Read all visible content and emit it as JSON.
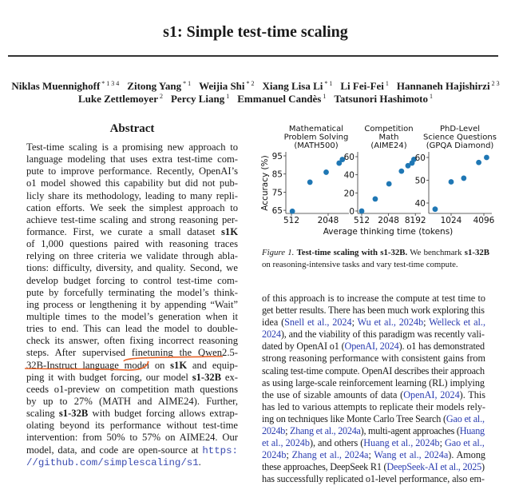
{
  "title": "s1: Simple test-time scaling",
  "authors_line1": [
    {
      "name": "Niklas Muennighoff",
      "sup": "* 1 3 4"
    },
    {
      "name": "Zitong Yang",
      "sup": "* 1"
    },
    {
      "name": "Weijia Shi",
      "sup": "* 2"
    },
    {
      "name": "Xiang Lisa Li",
      "sup": "* 1"
    },
    {
      "name": "Li Fei-Fei",
      "sup": "1"
    },
    {
      "name": "Hannaneh Hajishirzi",
      "sup": "2 3"
    }
  ],
  "authors_line2": [
    {
      "name": "Luke Zettlemoyer",
      "sup": "2"
    },
    {
      "name": "Percy Liang",
      "sup": "1"
    },
    {
      "name": "Emmanuel Candès",
      "sup": "1"
    },
    {
      "name": "Tatsunori Hashimoto",
      "sup": "1"
    }
  ],
  "abstract": {
    "heading": "Abstract",
    "lines": [
      [
        "Test-time scaling is a promising new approach to"
      ],
      [
        "language modeling that uses extra test-time com-"
      ],
      [
        "pute to improve performance. Recently, OpenAI’s"
      ],
      [
        "o1 model showed this capability but did not pub-"
      ],
      [
        "licly share its methodology, leading to many repli-"
      ],
      [
        "cation efforts. We seek the simplest approach to"
      ],
      [
        "achieve test-time scaling and strong reasoning per-"
      ],
      [
        "formance. First, we curate a small dataset ",
        {
          "t": "s1K",
          "s": "b"
        }
      ],
      [
        "of 1,000 questions paired with reasoning traces"
      ],
      [
        "relying on three criteria we validate through abla-"
      ],
      [
        "tions: difficulty, diversity, and quality. Second, we"
      ],
      [
        "develop budget forcing to control test-time com-"
      ],
      [
        "pute by forcefully terminating the model’s think-"
      ],
      [
        "ing process or lengthening it by appending “Wait”"
      ],
      [
        "multiple times to the model’s generation when it"
      ],
      [
        "tries to end. This can lead the model to double-"
      ],
      [
        "check its answer, often fixing incorrect reasoning"
      ],
      [
        "steps. After supervised finetuning the Qwen2.5-"
      ],
      [
        "32B-Instruct language model on ",
        {
          "t": "s1K",
          "s": "b"
        },
        " and equip-"
      ],
      [
        "ping it with budget forcing, our model ",
        {
          "t": "s1-32B",
          "s": "b"
        },
        " ex-"
      ],
      [
        "ceeds o1-preview on competition math questions"
      ],
      [
        "by up to 27% (MATH and AIME24). Further,"
      ],
      [
        "scaling ",
        {
          "t": "s1-32B",
          "s": "b"
        },
        " with budget forcing allows extrap-"
      ],
      [
        "olating beyond its performance without test-time"
      ],
      [
        "intervention: from 50% to 57% on AIME24. Our"
      ],
      [
        "model, data, and code are open-source at ",
        {
          "t": "https:",
          "s": "m"
        }
      ],
      [
        {
          "t": "//github.com/simplescaling/s1",
          "s": "m"
        },
        "."
      ]
    ]
  },
  "intro": {
    "lines": [
      [
        "of this approach is to increase the compute at test time to"
      ],
      [
        "get better results. There has been much work exploring this"
      ],
      [
        "idea (",
        {
          "t": "Snell et al., 2024",
          "s": "l"
        },
        "; ",
        {
          "t": "Wu et al., 2024b",
          "s": "l"
        },
        "; ",
        {
          "t": "Welleck et al.,",
          "s": "l"
        }
      ],
      [
        {
          "t": "2024",
          "s": "l"
        },
        "), and the viability of this paradigm was recently vali-"
      ],
      [
        "dated by OpenAI o1 (",
        {
          "t": "OpenAI, 2024",
          "s": "l"
        },
        "). o1 has demonstrated"
      ],
      [
        "strong reasoning performance with consistent gains from"
      ],
      [
        "scaling test-time compute. OpenAI describes their approach"
      ],
      [
        "as using large-scale reinforcement learning (RL) implying"
      ],
      [
        "the use of sizable amounts of data (",
        {
          "t": "OpenAI, 2024",
          "s": "l"
        },
        "). This"
      ],
      [
        "has led to various attempts to replicate their models rely-"
      ],
      [
        "ing on techniques like Monte Carlo Tree Search (",
        {
          "t": "Gao et al.,",
          "s": "l"
        }
      ],
      [
        {
          "t": "2024b",
          "s": "l"
        },
        "; ",
        {
          "t": "Zhang et al., 2024a",
          "s": "l"
        },
        "), multi-agent approaches (",
        {
          "t": "Huang",
          "s": "l"
        }
      ],
      [
        {
          "t": "et al., 2024b",
          "s": "l"
        },
        "), and others (",
        {
          "t": "Huang et al., 2024b",
          "s": "l"
        },
        "; ",
        {
          "t": "Gao et al.,",
          "s": "l"
        }
      ],
      [
        {
          "t": "2024b",
          "s": "l"
        },
        "; ",
        {
          "t": "Zhang et al., 2024a",
          "s": "l"
        },
        "; ",
        {
          "t": "Wang et al., 2024a",
          "s": "l"
        },
        "). Among"
      ],
      [
        "these approaches, DeepSeek R1 (",
        {
          "t": "DeepSeek-AI et al., 2025",
          "s": "l"
        },
        ")"
      ],
      [
        "has successfully replicated o1-level performance, also em-"
      ]
    ]
  },
  "figure": {
    "caption_label": "Figure 1.",
    "caption_bold": "Test-time scaling with s1-32B.",
    "caption_rest1": " We benchmark ",
    "caption_bold2": "s1-32B",
    "caption_rest2": "on reasoning-intensive tasks and vary test-time compute."
  },
  "chart_data": [
    {
      "type": "scatter",
      "title": [
        "Mathematical",
        "Problem Solving",
        "(MATH500)"
      ],
      "ylabel": "Accuracy (%)",
      "xlabel": "Average thinking time (tokens)",
      "x_scale": "log2",
      "x_ticks": [
        512,
        2048
      ],
      "y_ticks": [
        65,
        75,
        85,
        95
      ],
      "x": [
        530,
        1030,
        1900,
        3100,
        3500
      ],
      "y": [
        64.5,
        80.5,
        86,
        91,
        93
      ],
      "color": "#1f77b4"
    },
    {
      "type": "scatter",
      "title": [
        "Competition",
        "Math",
        "(AIME24)"
      ],
      "x_scale": "log2",
      "x_ticks": [
        512,
        2048,
        8192
      ],
      "y_ticks": [
        0,
        20,
        40,
        60
      ],
      "x": [
        512,
        1030,
        2100,
        4000,
        5600,
        6900,
        7600
      ],
      "y": [
        0,
        13.3,
        30,
        44,
        50,
        53,
        57
      ],
      "color": "#1f77b4"
    },
    {
      "type": "scatter",
      "title": [
        "PhD-Level",
        "Science Questions",
        "(GPQA Diamond)"
      ],
      "x_scale": "log2",
      "x_ticks": [
        1024,
        4096
      ],
      "y_ticks": [
        40,
        50,
        60
      ],
      "x": [
        520,
        1024,
        1750,
        3300,
        4600
      ],
      "y": [
        37.3,
        49.3,
        50.9,
        57.8,
        60
      ],
      "color": "#1f77b4"
    }
  ],
  "annotation_color": "#e8642a"
}
